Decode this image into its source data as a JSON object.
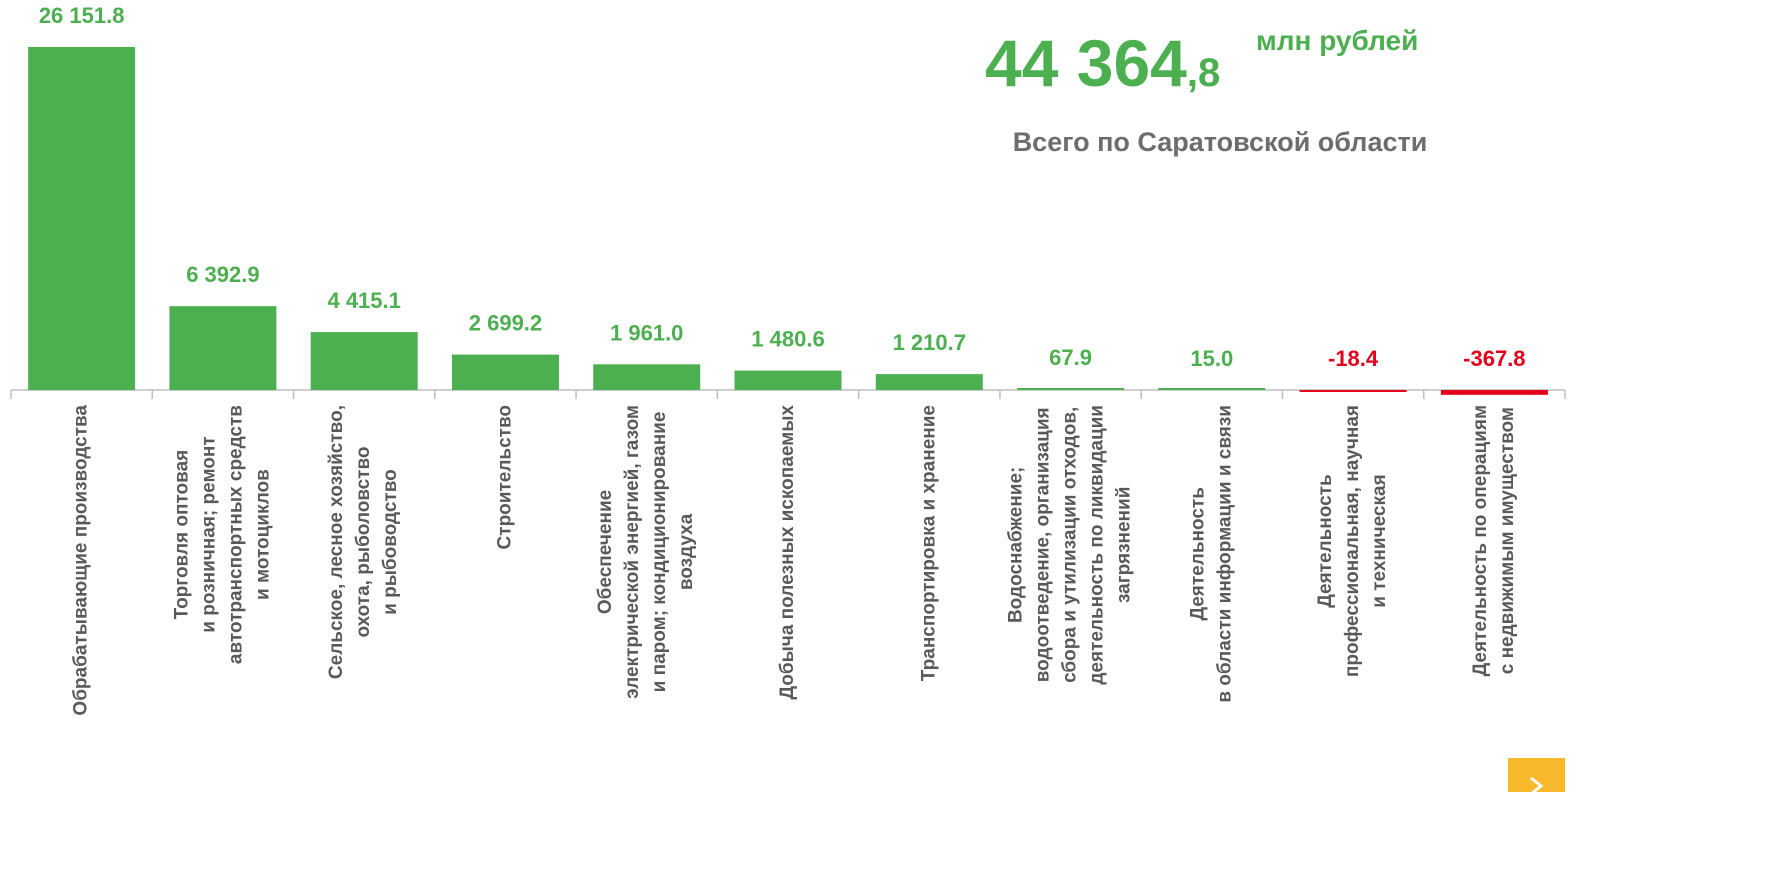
{
  "chart_data": {
    "type": "bar",
    "categories": [
      "Обрабатывающие производства",
      "Торговля оптовая\nи розничная; ремонт\nавтотранспортных средств\nи мотоциклов",
      "Сельское, лесное хозяйство,\nохота, рыболовство\nи рыбоводство",
      "Строительство",
      "Обеспечение\nэлектрической энергией, газом\nи паром; кондиционирование\nвоздуха",
      "Добыча полезных ископаемых",
      "Транспортировка и хранение",
      "Водоснабжение;\nводоотведение, организация\nсбора и утилизации отходов,\nдеятельность по ликвидации\nзагрязнений",
      "Деятельность\nв области информации и связи",
      "Деятельность\nпрофессиональная, научная\nи техническая",
      "Деятельность по операциям\nс недвижимым имуществом"
    ],
    "values": [
      26151.8,
      6392.9,
      4415.1,
      2699.2,
      1961.0,
      1480.6,
      1210.7,
      67.9,
      15.0,
      -18.4,
      -367.8
    ],
    "value_labels": [
      "26 151.8",
      "6 392.9",
      "4 415.1",
      "2 699.2",
      "1 961.0",
      "1 480.6",
      "1 210.7",
      "67.9",
      "15.0",
      "-18.4",
      "-367.8"
    ],
    "color": "#4caf50",
    "negative_color": "#e3001b",
    "annotations": {
      "total_integer": "44 364",
      "total_decimal": ",8",
      "unit": "млн рублей",
      "caption": "Всего по Саратовской области"
    }
  }
}
